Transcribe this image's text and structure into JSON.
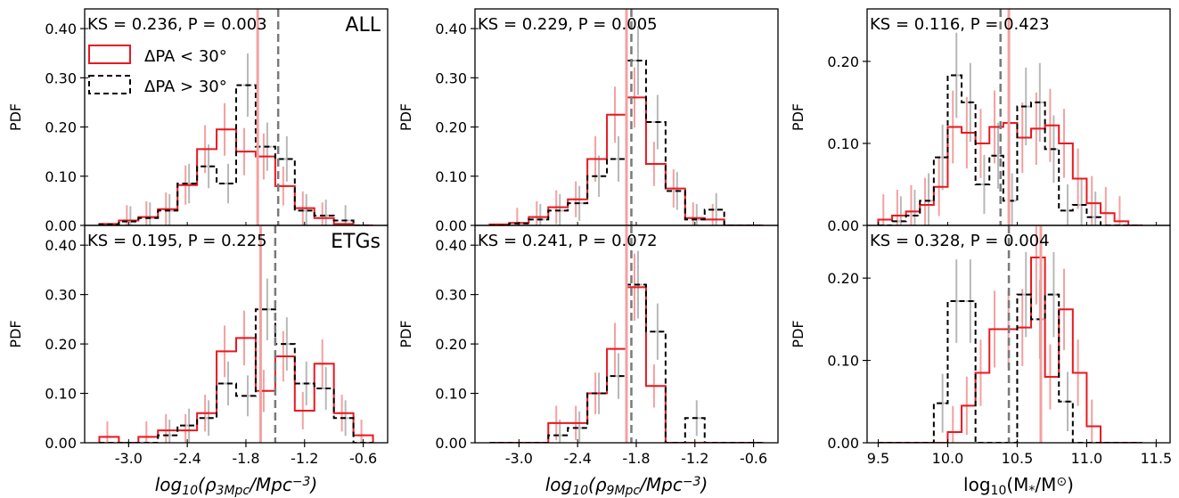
{
  "chart_data": [
    {
      "type": "step-histogram",
      "id": "rho3-all",
      "ylabel": "PDF",
      "ylim": [
        0,
        0.44
      ],
      "yticks": [
        "0.00",
        "0.10",
        "0.20",
        "0.30",
        "0.40"
      ],
      "xlim": [
        -3.45,
        -0.35
      ],
      "ks_text": "KS = 0.236, P = 0.003",
      "sample_label": "ALL",
      "vline_red": -1.68,
      "vline_gray": -1.47,
      "bin_edges": [
        -3.3,
        -3.1,
        -2.9,
        -2.7,
        -2.5,
        -2.3,
        -2.1,
        -1.9,
        -1.7,
        -1.5,
        -1.3,
        -1.1,
        -0.9,
        -0.7,
        -0.5
      ],
      "series": [
        {
          "name": "ΔPA < 30°",
          "values": [
            0.003,
            0.01,
            0.017,
            0.033,
            0.082,
            0.155,
            0.195,
            0.15,
            0.14,
            0.08,
            0.035,
            0.015,
            0.003,
            0.0
          ]
        },
        {
          "name": "ΔPA > 30°",
          "values": [
            0.002,
            0.008,
            0.015,
            0.03,
            0.085,
            0.12,
            0.085,
            0.285,
            0.16,
            0.135,
            0.03,
            0.02,
            0.01,
            0.0
          ]
        }
      ]
    },
    {
      "type": "step-histogram",
      "id": "rho9-all",
      "ylabel": "PDF",
      "ylim": [
        0,
        0.44
      ],
      "yticks": [
        "0.00",
        "0.10",
        "0.20",
        "0.30",
        "0.40"
      ],
      "xlim": [
        -3.45,
        -0.35
      ],
      "ks_text": "KS = 0.229, P = 0.005",
      "sample_label": "",
      "vline_red": -1.9,
      "vline_gray": -1.85,
      "bin_edges": [
        -3.3,
        -3.1,
        -2.9,
        -2.7,
        -2.5,
        -2.3,
        -2.1,
        -1.9,
        -1.7,
        -1.5,
        -1.3,
        -1.1,
        -0.9,
        -0.7,
        -0.5
      ],
      "series": [
        {
          "name": "ΔPA < 30°",
          "values": [
            0.002,
            0.005,
            0.017,
            0.037,
            0.053,
            0.135,
            0.225,
            0.26,
            0.125,
            0.075,
            0.015,
            0.012,
            0.0,
            0.0
          ]
        },
        {
          "name": "ΔPA > 30°",
          "values": [
            0.0,
            0.004,
            0.012,
            0.03,
            0.045,
            0.1,
            0.135,
            0.335,
            0.21,
            0.07,
            0.012,
            0.032,
            0.0,
            0.0
          ]
        }
      ]
    },
    {
      "type": "step-histogram",
      "id": "mstar-all",
      "ylabel": "PDF",
      "ylim": [
        0,
        0.264
      ],
      "yticks": [
        "0.00",
        "0.10",
        "0.20"
      ],
      "xlim": [
        9.42,
        11.6
      ],
      "ks_text": "KS = 0.116, P = 0.423",
      "sample_label": "",
      "vline_red": 10.44,
      "vline_gray": 10.38,
      "bin_edges": [
        9.5,
        9.6,
        9.7,
        9.8,
        9.9,
        10.0,
        10.1,
        10.2,
        10.3,
        10.4,
        10.5,
        10.6,
        10.7,
        10.8,
        10.9,
        11.0,
        11.1,
        11.2,
        11.3,
        11.4
      ],
      "series": [
        {
          "name": "ΔPA < 30°",
          "values": [
            0.007,
            0.012,
            0.017,
            0.025,
            0.047,
            0.12,
            0.113,
            0.1,
            0.12,
            0.125,
            0.107,
            0.118,
            0.122,
            0.1,
            0.057,
            0.027,
            0.015,
            0.005,
            0.0
          ]
        },
        {
          "name": "ΔPA > 30°",
          "values": [
            0.0,
            0.005,
            0.012,
            0.03,
            0.083,
            0.183,
            0.15,
            0.05,
            0.085,
            0.03,
            0.145,
            0.15,
            0.093,
            0.018,
            0.025,
            0.01,
            0.0,
            0.0,
            0.0
          ]
        }
      ]
    },
    {
      "type": "step-histogram",
      "id": "rho3-etg",
      "ylabel": "PDF",
      "ylim": [
        0,
        0.44
      ],
      "yticks": [
        "0.00",
        "0.10",
        "0.20",
        "0.30",
        "0.40"
      ],
      "xlim": [
        -3.45,
        -0.35
      ],
      "ks_text": "KS = 0.195, P = 0.225",
      "sample_label": "ETGs",
      "vline_red": -1.65,
      "vline_gray": -1.5,
      "bin_edges": [
        -3.3,
        -3.1,
        -2.9,
        -2.7,
        -2.5,
        -2.3,
        -2.1,
        -1.9,
        -1.7,
        -1.5,
        -1.3,
        -1.1,
        -0.9,
        -0.7,
        -0.5
      ],
      "series": [
        {
          "name": "ΔPA < 30°",
          "values": [
            0.012,
            0.0,
            0.012,
            0.025,
            0.025,
            0.06,
            0.185,
            0.212,
            0.105,
            0.175,
            0.065,
            0.16,
            0.06,
            0.015
          ]
        },
        {
          "name": "ΔPA > 30°",
          "values": [
            0.0,
            0.0,
            0.0,
            0.015,
            0.035,
            0.05,
            0.12,
            0.095,
            0.27,
            0.2,
            0.12,
            0.11,
            0.05,
            0.0
          ]
        }
      ]
    },
    {
      "type": "step-histogram",
      "id": "rho9-etg",
      "ylabel": "PDF",
      "ylim": [
        0,
        0.44
      ],
      "yticks": [
        "0.00",
        "0.10",
        "0.20",
        "0.30",
        "0.40"
      ],
      "xlim": [
        -3.45,
        -0.35
      ],
      "ks_text": "KS = 0.241, P = 0.072",
      "sample_label": "",
      "vline_red": -1.9,
      "vline_gray": -1.85,
      "bin_edges": [
        -3.3,
        -3.1,
        -2.9,
        -2.7,
        -2.5,
        -2.3,
        -2.1,
        -1.9,
        -1.7,
        -1.5,
        -1.3,
        -1.1,
        -0.9,
        -0.7,
        -0.5
      ],
      "series": [
        {
          "name": "ΔPA < 30°",
          "values": [
            0.0,
            0.0,
            0.0,
            0.04,
            0.04,
            0.1,
            0.19,
            0.315,
            0.115,
            0.0,
            0.0,
            0.0,
            0.0,
            0.0
          ]
        },
        {
          "name": "ΔPA > 30°",
          "values": [
            0.0,
            0.0,
            0.0,
            0.015,
            0.03,
            0.1,
            0.135,
            0.32,
            0.225,
            0.0,
            0.05,
            0.0,
            0.0,
            0.0
          ]
        }
      ]
    },
    {
      "type": "step-histogram",
      "id": "mstar-etg",
      "ylabel": "PDF",
      "ylim": [
        0,
        0.264
      ],
      "yticks": [
        "0.00",
        "0.10",
        "0.20"
      ],
      "xlim": [
        9.42,
        11.6
      ],
      "ks_text": "KS = 0.328, P = 0.004",
      "sample_label": "",
      "vline_red": 10.67,
      "vline_gray": 10.44,
      "bin_edges": [
        9.5,
        9.6,
        9.7,
        9.8,
        9.9,
        10.0,
        10.1,
        10.2,
        10.3,
        10.4,
        10.5,
        10.6,
        10.7,
        10.8,
        10.9,
        11.0,
        11.1,
        11.2,
        11.3,
        11.4
      ],
      "series": [
        {
          "name": "ΔPA < 30°",
          "values": [
            0.0,
            0.0,
            0.0,
            0.0,
            0.0,
            0.013,
            0.045,
            0.085,
            0.138,
            0.138,
            0.14,
            0.225,
            0.08,
            0.162,
            0.085,
            0.02,
            0.0,
            0.0,
            0.0
          ]
        },
        {
          "name": "ΔPA > 30°",
          "values": [
            0.0,
            0.0,
            0.0,
            0.0,
            0.048,
            0.172,
            0.172,
            0.0,
            0.0,
            0.0,
            0.18,
            0.15,
            0.18,
            0.05,
            0.0,
            0.0,
            0.0,
            0.0,
            0.0
          ]
        }
      ]
    }
  ],
  "xaxes": [
    {
      "ticks": [
        "-3.0",
        "-2.4",
        "-1.8",
        "-1.2",
        "-0.6"
      ],
      "tick_values": [
        -3.0,
        -2.4,
        -1.8,
        -1.2,
        -0.6
      ],
      "label_prefix": "log",
      "label_sub": "10",
      "label_main": "(ρ",
      "label_sub2": "3Mpc",
      "label_mid": "/Mpc",
      "label_sup": "−3",
      "label_end": ")"
    },
    {
      "ticks": [
        "-3.0",
        "-2.4",
        "-1.8",
        "-1.2",
        "-0.6"
      ],
      "tick_values": [
        -3.0,
        -2.4,
        -1.8,
        -1.2,
        -0.6
      ],
      "label_prefix": "log",
      "label_sub": "10",
      "label_main": "(ρ",
      "label_sub2": "9Mpc",
      "label_mid": "/Mpc",
      "label_sup": "−3",
      "label_end": ")"
    },
    {
      "ticks": [
        "9.5",
        "10.0",
        "10.5",
        "11.0",
        "11.5"
      ],
      "tick_values": [
        9.5,
        10.0,
        10.5,
        11.0,
        11.5
      ],
      "label_prefix": "log",
      "label_sub": "10",
      "label_main": "(M",
      "label_sub2": "*",
      "label_mid": "/M",
      "label_sup": "⊙",
      "label_end": ")"
    }
  ],
  "legend": [
    {
      "label": "ΔPA < 30°",
      "color": "#e8191f",
      "dash": false
    },
    {
      "label": "ΔPA > 30°",
      "color": "#000000",
      "dash": true
    }
  ],
  "colors": {
    "red": "#e8191f",
    "red_light": "#f4a0a0",
    "black": "#000000",
    "gray_line": "#7a7a7a",
    "gray_light": "#b8b8b8"
  }
}
